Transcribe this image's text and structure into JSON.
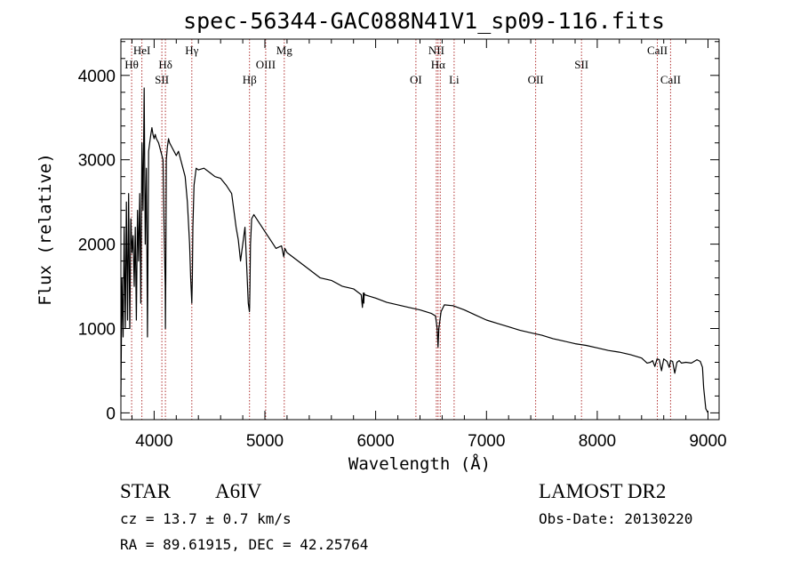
{
  "chart_data": {
    "type": "line",
    "title": "spec-56344-GAC088N41V1_sp09-116.fits",
    "xlabel": "Wavelength (Å)",
    "ylabel": "Flux (relative)",
    "xlim": [
      3700,
      9100
    ],
    "ylim": [
      -80,
      4430
    ],
    "x_ticks": [
      4000,
      5000,
      6000,
      7000,
      8000,
      9000
    ],
    "y_ticks": [
      0,
      1000,
      2000,
      3000,
      4000
    ],
    "x_tick_labels": [
      "4000",
      "5000",
      "6000",
      "7000",
      "8000",
      "9000"
    ],
    "y_tick_labels": [
      "0",
      "1000",
      "2000",
      "3000",
      "4000"
    ],
    "grid": false,
    "line_color": "#000000",
    "marker_color": "#b03030",
    "spectrum": {
      "x": [
        3700,
        3710,
        3720,
        3730,
        3740,
        3750,
        3760,
        3770,
        3780,
        3790,
        3800,
        3810,
        3820,
        3830,
        3840,
        3850,
        3860,
        3870,
        3880,
        3890,
        3900,
        3910,
        3920,
        3930,
        3940,
        3950,
        3960,
        3970,
        3980,
        3990,
        4000,
        4010,
        4020,
        4040,
        4060,
        4080,
        4090,
        4100,
        4102,
        4105,
        4110,
        4120,
        4130,
        4140,
        4160,
        4180,
        4200,
        4220,
        4240,
        4260,
        4280,
        4300,
        4320,
        4330,
        4340,
        4345,
        4350,
        4360,
        4380,
        4400,
        4450,
        4500,
        4550,
        4600,
        4650,
        4700,
        4720,
        4740,
        4760,
        4780,
        4800,
        4820,
        4840,
        4850,
        4860,
        4862,
        4865,
        4870,
        4880,
        4900,
        4950,
        5000,
        5050,
        5100,
        5150,
        5170,
        5180,
        5200,
        5300,
        5400,
        5500,
        5600,
        5700,
        5800,
        5870,
        5880,
        5889,
        5893,
        5896,
        5900,
        5950,
        6000,
        6100,
        6200,
        6300,
        6400,
        6500,
        6540,
        6555,
        6563,
        6570,
        6590,
        6620,
        6700,
        6800,
        6900,
        7000,
        7100,
        7200,
        7300,
        7400,
        7500,
        7600,
        7700,
        7800,
        7900,
        8000,
        8100,
        8200,
        8300,
        8400,
        8450,
        8480,
        8500,
        8520,
        8540,
        8560,
        8580,
        8600,
        8630,
        8650,
        8662,
        8680,
        8700,
        8720,
        8740,
        8760,
        8800,
        8850,
        8900,
        8930,
        8950,
        8960,
        8980,
        9000
      ],
      "y": [
        200,
        1600,
        900,
        2200,
        1000,
        2500,
        1100,
        2600,
        1000,
        2300,
        1900,
        2100,
        1500,
        2200,
        1100,
        2400,
        1800,
        2600,
        1300,
        3200,
        2400,
        3850,
        2000,
        2900,
        900,
        3100,
        3200,
        3300,
        3380,
        3300,
        3250,
        3300,
        3250,
        3200,
        3100,
        3000,
        2200,
        1500,
        1000,
        1600,
        3000,
        3150,
        3250,
        3200,
        3150,
        3100,
        3050,
        3100,
        3000,
        2900,
        2800,
        2500,
        2000,
        1600,
        1300,
        1600,
        2200,
        2700,
        2900,
        2880,
        2900,
        2850,
        2800,
        2780,
        2700,
        2600,
        2400,
        2200,
        2050,
        1800,
        2000,
        2200,
        1600,
        1300,
        1200,
        1250,
        1500,
        2000,
        2300,
        2350,
        2250,
        2150,
        2050,
        1950,
        1980,
        1850,
        1950,
        1900,
        1800,
        1700,
        1600,
        1570,
        1500,
        1470,
        1400,
        1250,
        1420,
        1300,
        1420,
        1400,
        1380,
        1360,
        1310,
        1280,
        1250,
        1220,
        1180,
        1150,
        1000,
        780,
        1000,
        1200,
        1280,
        1270,
        1220,
        1160,
        1100,
        1060,
        1020,
        980,
        950,
        920,
        880,
        850,
        820,
        800,
        770,
        740,
        720,
        690,
        650,
        590,
        600,
        620,
        550,
        640,
        630,
        500,
        640,
        610,
        540,
        620,
        610,
        470,
        600,
        620,
        590,
        600,
        590,
        630,
        610,
        540,
        300,
        50,
        0
      ]
    },
    "line_markers": [
      {
        "label": "Hθ",
        "x": 3797,
        "row": 2
      },
      {
        "label": "HeI",
        "x": 3889,
        "row": 1
      },
      {
        "label": "SII",
        "x": 4070,
        "row": 3
      },
      {
        "label": "Hδ",
        "x": 4102,
        "row": 2
      },
      {
        "label": "Hγ",
        "x": 4340,
        "row": 1
      },
      {
        "label": "Hβ",
        "x": 4861,
        "row": 3
      },
      {
        "label": "OIII",
        "x": 5007,
        "row": 2
      },
      {
        "label": "Mg",
        "x": 5175,
        "row": 1
      },
      {
        "label": "OI",
        "x": 6363,
        "row": 3
      },
      {
        "label": "NII",
        "x": 6548,
        "row": 1
      },
      {
        "label": "Hα",
        "x": 6563,
        "row": 2
      },
      {
        "label": "NII",
        "x": 6583,
        "row": 0
      },
      {
        "label": "Li",
        "x": 6708,
        "row": 3
      },
      {
        "label": "OII",
        "x": 7444,
        "row": 3
      },
      {
        "label": "SII",
        "x": 7858,
        "row": 2
      },
      {
        "label": "CaII",
        "x": 8542,
        "row": 1
      },
      {
        "label": "CaII",
        "x": 8662,
        "row": 3
      }
    ]
  },
  "info": {
    "object_type": "STAR",
    "subclass": "A6IV",
    "survey": "LAMOST DR2",
    "redshift": "cz = 13.7 ± 0.7 km/s",
    "obs_date": "Obs-Date: 20130220",
    "coords": "RA =  89.61915, DEC =  42.25764"
  }
}
